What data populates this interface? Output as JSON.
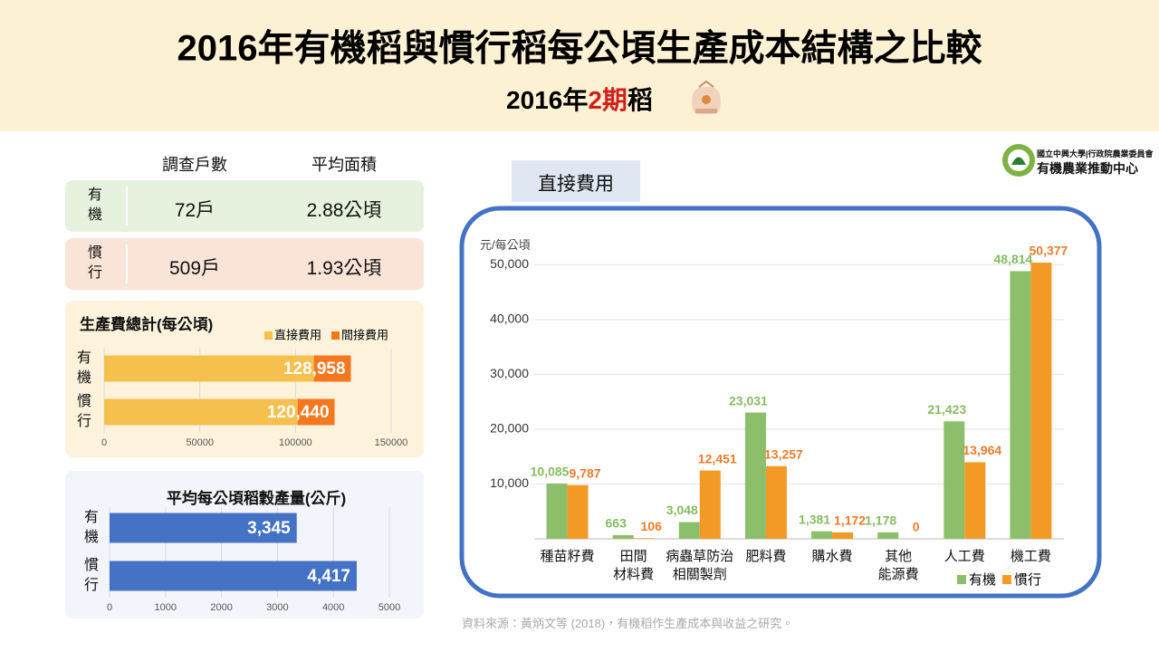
{
  "header": {
    "title": "2016年有機稻與慣行稻每公頃生產成本結構之比較",
    "subtitle": {
      "year": "2016年",
      "period": "2期",
      "crop": "稻"
    }
  },
  "logo": {
    "line1": "國立中興大學|行政院農業委員會",
    "line2": "有機農業推動中心"
  },
  "survey_table": {
    "columns": [
      "調查戶數",
      "平均面積"
    ],
    "rows": [
      [
        "有機",
        "72戶",
        "2.88公頃"
      ],
      [
        "慣行",
        "509戶",
        "1.93公頃"
      ]
    ]
  },
  "chart_data": [
    {
      "type": "stacked_bar_h",
      "title": "生產費總計(每公頃)",
      "categories": [
        "有機",
        "慣行"
      ],
      "series": [
        {
          "name": "直接費用",
          "color": "#f6c04e",
          "values": [
            109623,
            101114
          ]
        },
        {
          "name": "間接費用",
          "color": "#f5781e",
          "values": [
            19335,
            19326
          ]
        }
      ],
      "totals": [
        128958,
        120440
      ],
      "total_labels": [
        "128,958",
        "120,440"
      ],
      "xlim": [
        0,
        150000
      ],
      "xticks": [
        0,
        50000,
        100000,
        150000
      ],
      "grid": true,
      "legend": "top-right"
    },
    {
      "type": "bar_h",
      "title": "平均每公頃稻穀產量(公斤)",
      "categories": [
        "有機",
        "慣行"
      ],
      "values": [
        3345,
        4417
      ],
      "value_labels": [
        "3,345",
        "4,417"
      ],
      "color": "#4472c4",
      "xlim": [
        0,
        5000
      ],
      "xticks": [
        0,
        1000,
        2000,
        3000,
        4000,
        5000
      ],
      "grid": true
    },
    {
      "type": "bar",
      "title": "直接費用",
      "y_label": "元/每公頃",
      "categories": [
        "種苗籽費",
        "田間\n材料費",
        "病蟲草防治\n相關製劑",
        "肥料費",
        "購水費",
        "其他\n能源費",
        "人工費",
        "機工費"
      ],
      "series": [
        {
          "name": "有機",
          "color": "#8dbf6a",
          "label_color": "#86bb63",
          "values": [
            10085,
            663,
            3048,
            23031,
            1381,
            1178,
            21423,
            48814
          ],
          "value_labels": [
            "10,085",
            "663",
            "3,048",
            "23,031",
            "1,381",
            "1,178",
            "21,423",
            "48,814"
          ]
        },
        {
          "name": "慣行",
          "color": "#f39a26",
          "label_color": "#f07b2a",
          "values": [
            9787,
            106,
            12451,
            13257,
            1172,
            0,
            13964,
            50377
          ],
          "value_labels": [
            "9,787",
            "106",
            "12,451",
            "13,257",
            "1,172",
            "0",
            "13,964",
            "50,377"
          ]
        }
      ],
      "ylim": [
        0,
        55000
      ],
      "yticks": [
        {
          "value": 10000,
          "label": "10,000"
        },
        {
          "value": 20000,
          "label": "20,000"
        },
        {
          "value": 30000,
          "label": "30,000"
        },
        {
          "value": 40000,
          "label": "40,000"
        },
        {
          "value": 50000,
          "label": "50,000"
        }
      ],
      "grid": true,
      "legend": "bottom-right"
    }
  ],
  "source": "資料來源：黃炳文等 (2018)，有機稻作生產成本與收益之研究。"
}
